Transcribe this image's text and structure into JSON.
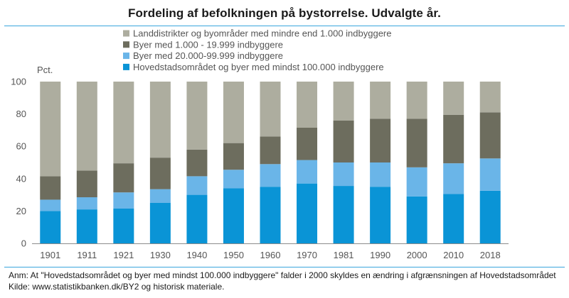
{
  "title": "Fordeling af befolkningen på bystorrelse. Udvalgte år.",
  "notes": {
    "anm": "Anm: At \"Hovedstadsområdet og byer med mindst 100.000 indbyggere\" falder i 2000 skyldes en ændring i afgrænsningen af Hovedstadsområdet",
    "kilde": "Kilde: www.statistikbanken.dk/BY2 og historisk materiale."
  },
  "chart_data": {
    "type": "bar",
    "stacked": true,
    "ylabel": "Pct.",
    "ylim": [
      0,
      100
    ],
    "yticks": [
      "0",
      "20",
      "40",
      "60",
      "80",
      "100"
    ],
    "grid": false,
    "legend_position": "top",
    "categories": [
      "1901",
      "1911",
      "1921",
      "1930",
      "1940",
      "1950",
      "1960",
      "1970",
      "1981",
      "1990",
      "2000",
      "2010",
      "2018"
    ],
    "series": [
      {
        "name": "Hovedstadsområdet og byer med mindst 100.000 indbyggere",
        "color": "#0a94d6",
        "values": [
          20,
          21,
          21.5,
          25,
          30,
          34,
          35,
          37,
          35.5,
          35,
          29,
          30.5,
          32.5
        ]
      },
      {
        "name": "Byer med 20.000-99.999 indbyggere",
        "color": "#6ab5e8",
        "values": [
          7,
          7.5,
          10,
          8.5,
          11.5,
          11.5,
          14,
          14.5,
          14.5,
          15,
          18,
          19,
          20
        ]
      },
      {
        "name": "Byer med 1.000 - 19.999 indbyggere",
        "color": "#6d6d5e",
        "values": [
          14.5,
          16.5,
          18,
          19.5,
          16.5,
          16.5,
          17,
          20,
          26,
          27,
          30,
          30,
          28.5
        ]
      },
      {
        "name": "Landdistrikter og byområder med mindre end 1.000 indbyggere",
        "color": "#adad9f",
        "values": [
          58.5,
          55,
          50.5,
          47,
          42,
          38,
          34,
          28.5,
          24,
          23,
          23,
          20.5,
          19
        ]
      }
    ]
  }
}
